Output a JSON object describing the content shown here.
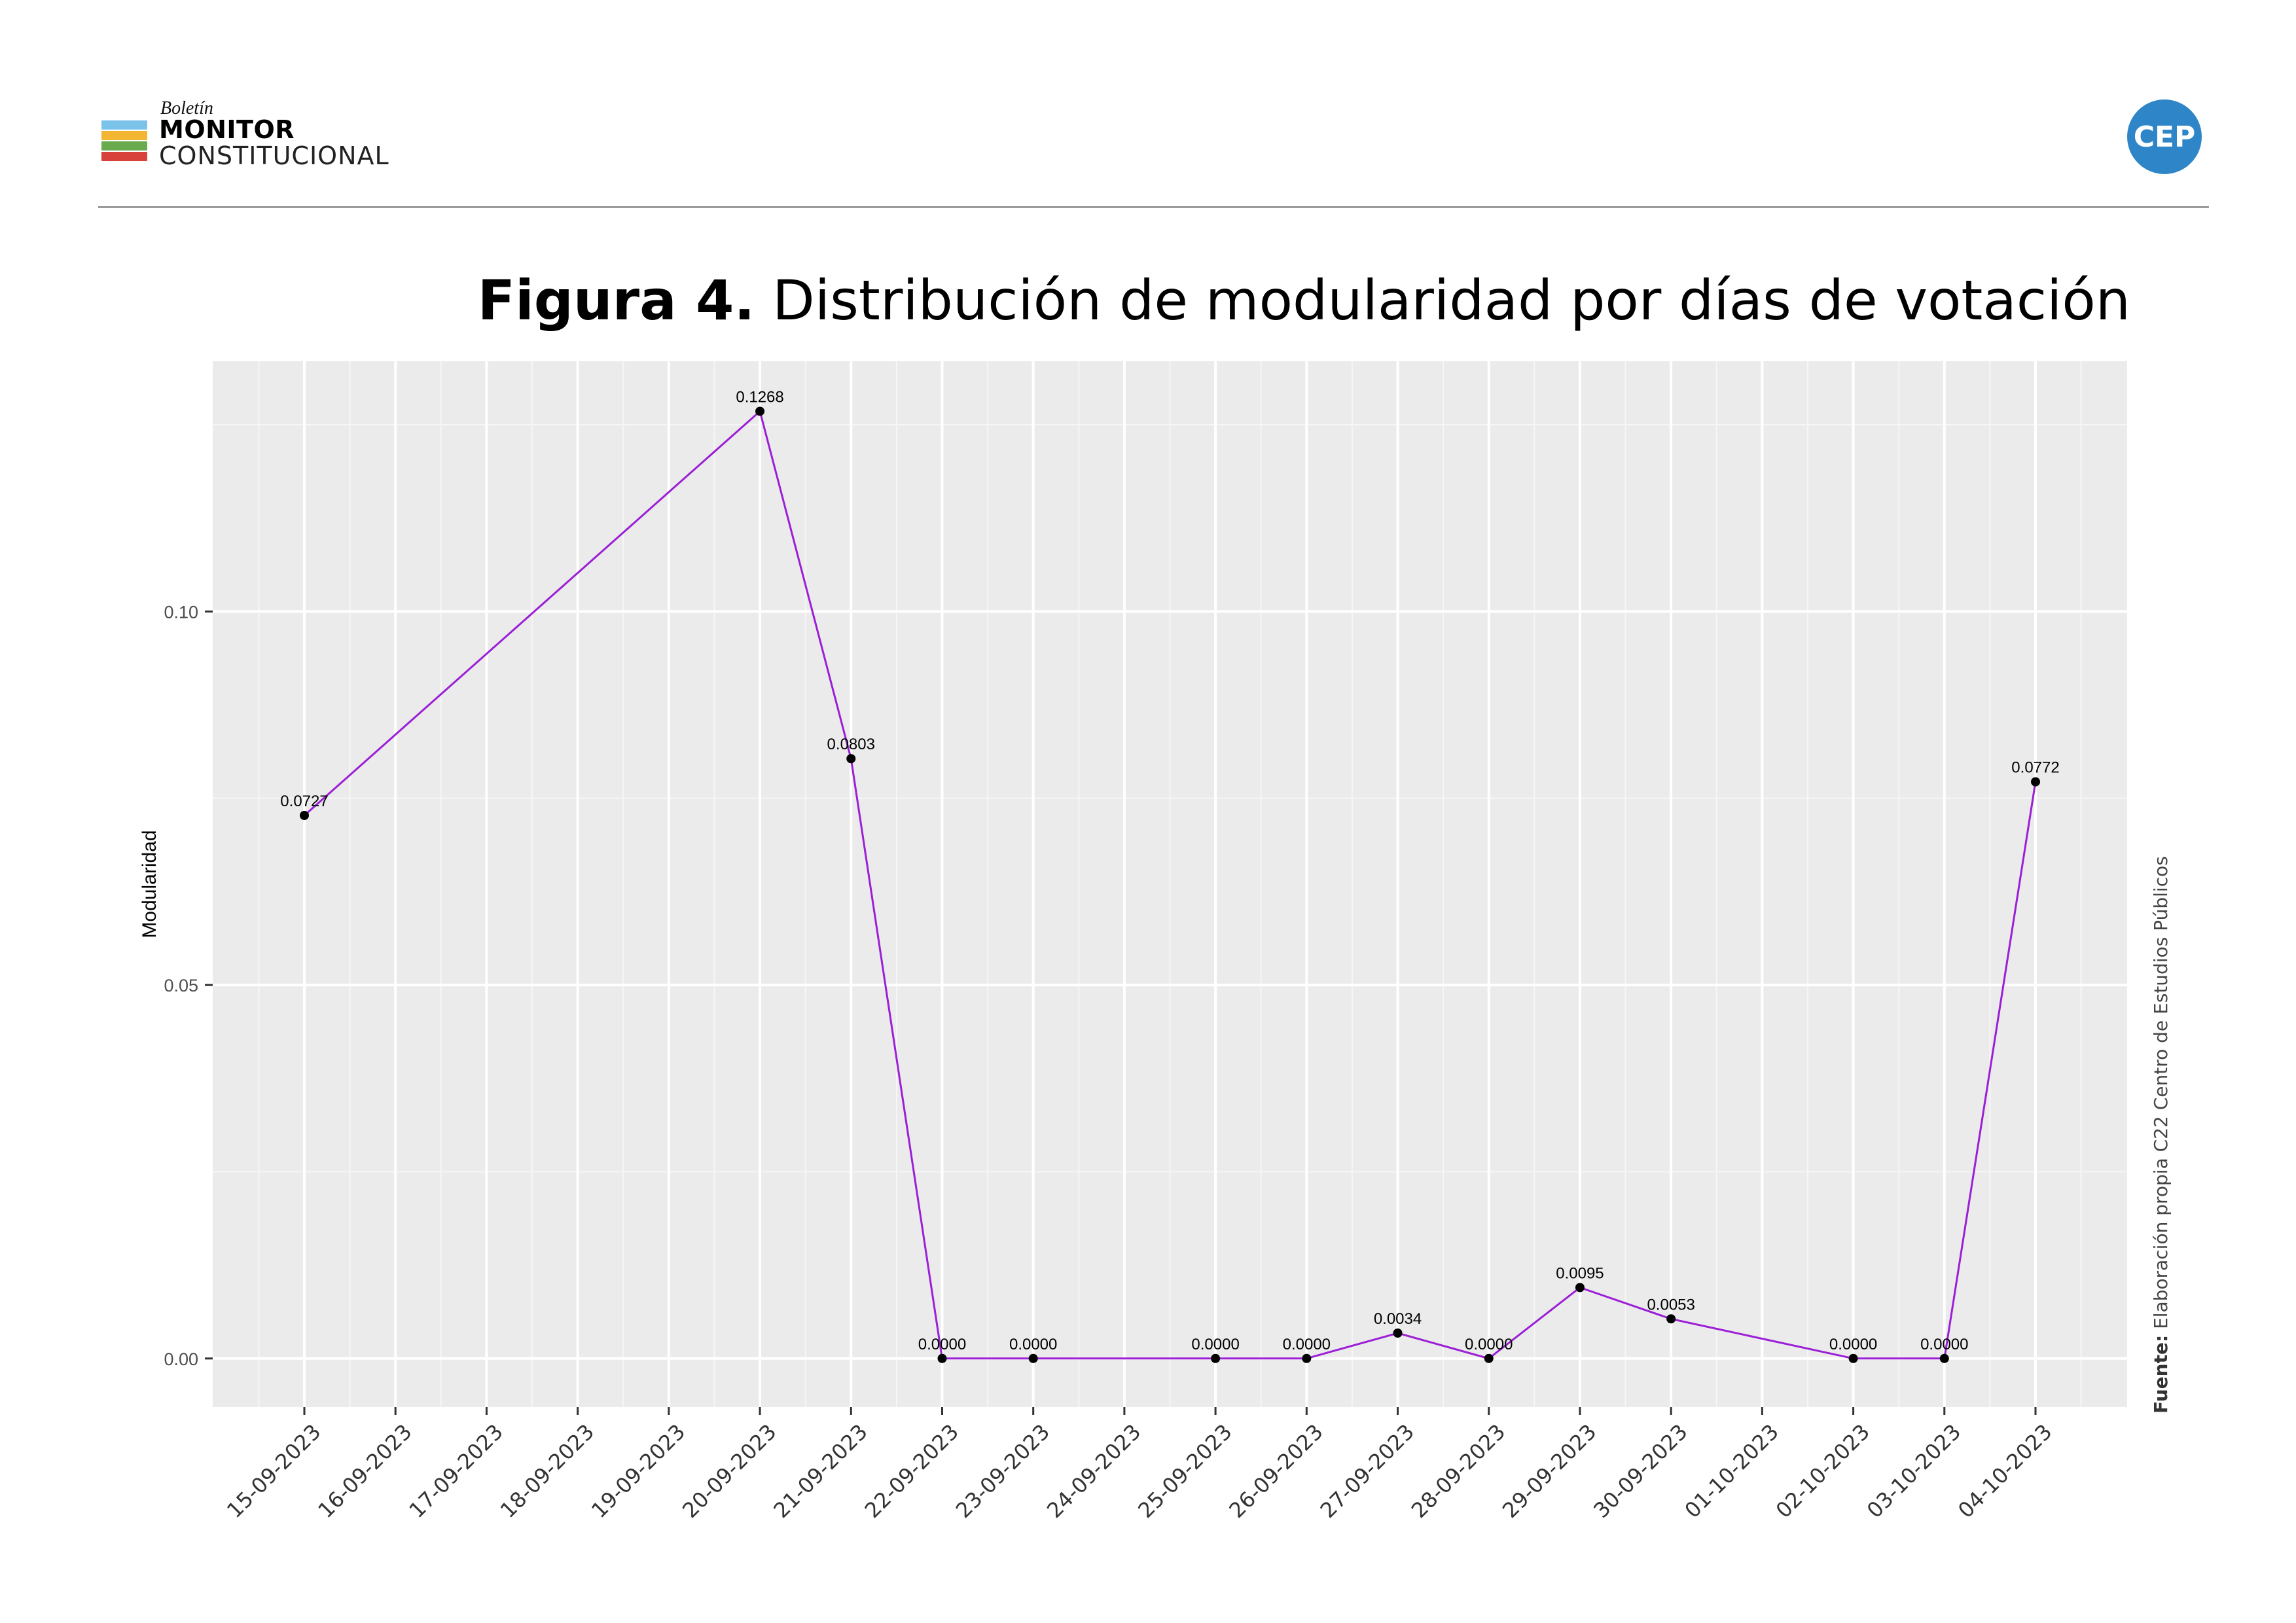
{
  "header": {
    "logo_small": "Boletín",
    "logo_main": "MONITOR",
    "logo_sub": "CONSTITUCIONAL",
    "logo_bar_colors": [
      "#7cc3ea",
      "#f2b632",
      "#6aaa4f",
      "#d8403a"
    ],
    "badge": "CEP",
    "badge_color": "#2e86c8"
  },
  "figure": {
    "label": "Figura 4.",
    "title": "Distribución de modularidad por días de votación"
  },
  "source": {
    "label": "Fuente:",
    "text": "Elaboración propia C22 Centro de Estudios Públicos"
  },
  "chart_data": {
    "type": "line",
    "title": "",
    "xlabel": "",
    "ylabel": "Modularidad",
    "line_color": "#9b1fd6",
    "panel_color": "#ebebeb",
    "grid": true,
    "ylim": [
      -0.0065,
      0.1335
    ],
    "yticks": [
      0.0,
      0.05,
      0.1
    ],
    "ytick_labels": [
      "0.00",
      "0.05",
      "0.10"
    ],
    "x_ticks": [
      "15-09-2023",
      "16-09-2023",
      "17-09-2023",
      "18-09-2023",
      "19-09-2023",
      "20-09-2023",
      "21-09-2023",
      "22-09-2023",
      "23-09-2023",
      "24-09-2023",
      "25-09-2023",
      "26-09-2023",
      "27-09-2023",
      "28-09-2023",
      "29-09-2023",
      "30-09-2023",
      "01-10-2023",
      "02-10-2023",
      "03-10-2023",
      "04-10-2023"
    ],
    "points": [
      {
        "x": "15-09-2023",
        "y": 0.0727,
        "label": "0.0727"
      },
      {
        "x": "20-09-2023",
        "y": 0.1268,
        "label": "0.1268"
      },
      {
        "x": "21-09-2023",
        "y": 0.0803,
        "label": "0.0803"
      },
      {
        "x": "22-09-2023",
        "y": 0.0,
        "label": "0.0000"
      },
      {
        "x": "23-09-2023",
        "y": 0.0,
        "label": "0.0000"
      },
      {
        "x": "25-09-2023",
        "y": 0.0,
        "label": "0.0000"
      },
      {
        "x": "26-09-2023",
        "y": 0.0,
        "label": "0.0000"
      },
      {
        "x": "27-09-2023",
        "y": 0.0034,
        "label": "0.0034"
      },
      {
        "x": "28-09-2023",
        "y": 0.0,
        "label": "0.0000"
      },
      {
        "x": "29-09-2023",
        "y": 0.0095,
        "label": "0.0095"
      },
      {
        "x": "30-09-2023",
        "y": 0.0053,
        "label": "0.0053"
      },
      {
        "x": "02-10-2023",
        "y": 0.0,
        "label": "0.0000"
      },
      {
        "x": "03-10-2023",
        "y": 0.0,
        "label": "0.0000"
      },
      {
        "x": "04-10-2023",
        "y": 0.0772,
        "label": "0.0772"
      }
    ]
  }
}
